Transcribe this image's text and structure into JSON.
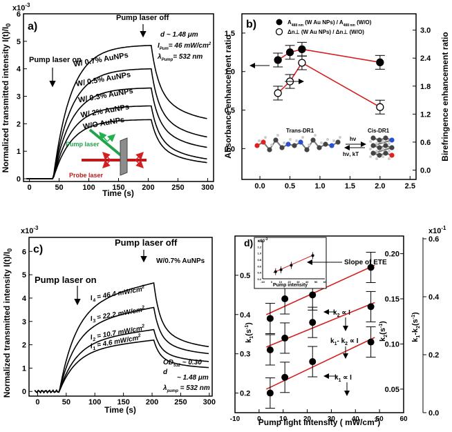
{
  "chart_data": [
    {
      "type": "line",
      "panel_label": "a)",
      "xlabel": "Time (s)",
      "ylabel": "Normalized transmitted intensity  I(t)/I",
      "ylabel_sub": "0",
      "exponent": "x10",
      "exponent_sup": "-3",
      "xlim": [
        -10,
        310
      ],
      "ylim": [
        -0.1,
        6.0
      ],
      "xticks": [
        "0",
        "50",
        "100",
        "150",
        "200",
        "250",
        "300"
      ],
      "yticks": [
        "0",
        "1",
        "2",
        "3",
        "4",
        "5",
        "6"
      ],
      "annotations": {
        "pump_on": "Pump laser on",
        "pump_off": "Pump laser off",
        "d": "d ~ 1.48 μm",
        "I": "I",
        "I_sub": "Pum",
        "I_val": "= 46 mW/cm",
        "I_sup": "2",
        "lambda": "λ",
        "lambda_sub": "Pump",
        "lambda_val": "= 532 nm",
        "pump_laser": "Pump laser",
        "probe_laser": "Probe laser"
      },
      "series": [
        {
          "name": "W/ 0.7% AuNPs",
          "peak": 4.85,
          "final": 1.95
        },
        {
          "name": "W/ 0.5% AuNPs",
          "peak": 4.0,
          "final": 1.3
        },
        {
          "name": "W/ 0.3% AuNPs",
          "peak": 3.3,
          "final": 0.95
        },
        {
          "name": "W/ 2% AuNPs",
          "peak": 2.65,
          "final": 0.55
        },
        {
          "name": "W/O AuNPs",
          "peak": 2.15,
          "final": 0.45
        }
      ]
    },
    {
      "type": "scatter",
      "panel_label": "b)",
      "ylabel_left": "Absorbance enhancement ratio",
      "ylabel_right": "Birefringence enhancement ratio",
      "xlim": [
        -0.3,
        2.6
      ],
      "ylim_left": [
        -0.4,
        1.75
      ],
      "ylim_right": [
        -0.2,
        3.35
      ],
      "xticks": [
        "0.0",
        "0.5",
        "1.0",
        "1.5",
        "2.0",
        "2.5"
      ],
      "yticks_left": [
        "0.0",
        "0.5",
        "1.0",
        "1.5"
      ],
      "yticks_right": [
        "0.0",
        "0.6",
        "1.2",
        "1.8",
        "2.4",
        "3.0"
      ],
      "legend": {
        "absorbance_main": "A",
        "absorbance_sub": "488 nm",
        "absorbance_mid": " (W Au NPs) / A",
        "absorbance_sub2": "488 nm",
        "absorbance_tail": " (W/O)",
        "birefringence": "Δn⊥ (W Au NPs)  / Δn⊥ (W/O)"
      },
      "molecule": {
        "trans": "Trans-DR1",
        "cis": "Cis-DR1",
        "hv": "hν",
        "reverse": "hν, kT"
      },
      "series": [
        {
          "name": "Absorbance",
          "axis": "left",
          "x": [
            0.3,
            0.5,
            0.7,
            2.0
          ],
          "y": [
            1.15,
            1.25,
            1.29,
            1.12
          ]
        },
        {
          "name": "Birefringence",
          "axis": "right",
          "x": [
            0.3,
            0.5,
            0.7,
            2.0
          ],
          "y": [
            1.65,
            1.9,
            2.3,
            1.35
          ]
        }
      ]
    },
    {
      "type": "line",
      "panel_label": "c)",
      "xlabel": "Time (s)",
      "ylabel": "Normalized transmitted intensity  I(t)/I",
      "ylabel_sub": "0",
      "exponent": "x10",
      "exponent_sup": "-3",
      "xlim": [
        -15,
        305
      ],
      "ylim": [
        -0.2,
        6.6
      ],
      "xticks": [
        "0",
        "50",
        "100",
        "150",
        "200",
        "250",
        "300"
      ],
      "yticks": [
        "0",
        "1",
        "2",
        "3",
        "4",
        "5",
        "6"
      ],
      "annotations": {
        "pump_on": "Pump laser on",
        "pump_off": "Pump laser off",
        "sample": "W/0.7% AuNPs",
        "od": "OD",
        "od_sub": "532",
        "od_val": " ~ 0.30",
        "d": "d",
        "d_val": "~ 1.48 μm",
        "lambda": "λ",
        "lambda_sub": "pump",
        "lambda_val": " = 532 nm"
      },
      "series": [
        {
          "name": "I",
          "sub": "4",
          "val": " = 46.4 mW/cm",
          "sup": "2",
          "peak": 4.65,
          "final": 1.75
        },
        {
          "name": "I",
          "sub": "3",
          "val": " = 22.2 mW/cm",
          "sup": "2",
          "peak": 3.6,
          "final": 1.5
        },
        {
          "name": "I",
          "sub": "2",
          "val": " = 10.7 mW/cm",
          "sup": "2",
          "peak": 2.65,
          "final": 1.2
        },
        {
          "name": "I",
          "sub": "1",
          "val": " = 4.6 mW/cm",
          "sup": "2",
          "peak": 2.2,
          "final": 0.95
        }
      ]
    },
    {
      "type": "scatter",
      "panel_label": "d)",
      "xlabel": "Pump light intensity ( mW/cm",
      "xlabel_sup": "2",
      "xlabel_tail": ")",
      "ylabel_k1": "k",
      "ylabel_k1_sub": "1",
      "ylabel_k1_tail": "(s",
      "ylabel_k1_sup": "-1",
      "ylabel_k1_close": ")",
      "ylabel_k2": "k",
      "ylabel_k2_sub": "2",
      "ylabel_k2_tail": "(s",
      "ylabel_k2_sup": "-1",
      "ylabel_k2_close": ")",
      "ylabel_diff": "k",
      "ylabel_diff_sub1": "1",
      "ylabel_diff_mid": "-k",
      "ylabel_diff_sub2": "2",
      "ylabel_diff_tail": "(s",
      "ylabel_diff_sup": "-1",
      "ylabel_diff_close": ")",
      "exponent": "x10",
      "exponent_sup": "-1",
      "xlim": [
        -10,
        60
      ],
      "ylim_k1": [
        0.15,
        0.6
      ],
      "xticks": [
        "-10",
        "0",
        "10",
        "20",
        "30",
        "40",
        "50",
        "60"
      ],
      "yticks_k1": [
        "0.2",
        "0.3",
        "0.4",
        "0.5"
      ],
      "yticks_k2": [
        "0.05",
        "0.10",
        "0.15",
        "0.20"
      ],
      "yticks_diff": [
        "0.0",
        "0.2",
        "0.4",
        "0.6"
      ],
      "labels": {
        "k1": "k",
        "k1_sub": "1",
        "k1_tail": " ∝ I",
        "k2": "k",
        "k2_sub": "2",
        "k2_tail": " ∝ I",
        "diff": "k",
        "diff_sub1": "1",
        "diff_mid": "- k",
        "diff_sub2": "2",
        "diff_tail": " ∝ I",
        "slope": "Slope of ETE"
      },
      "series": [
        {
          "name": "k1",
          "x": [
            4.6,
            10.7,
            22.2,
            46.4
          ],
          "y": [
            0.39,
            0.44,
            0.45,
            0.52
          ]
        },
        {
          "name": "k1-k2",
          "x": [
            4.6,
            10.7,
            22.2,
            46.4
          ],
          "y": [
            0.31,
            0.34,
            0.38,
            0.42
          ]
        },
        {
          "name": "k2",
          "x": [
            4.6,
            10.7,
            22.2,
            46.4
          ],
          "y": [
            0.2,
            0.24,
            0.28,
            0.33
          ]
        }
      ],
      "inset": {
        "xlabel": "Pump intensity",
        "exponent": "x10",
        "exponent_sup": "-3",
        "xticks": [
          "-10",
          "0",
          "10",
          "20",
          "30",
          "40",
          "50",
          "60"
        ],
        "yticks": [
          "0.2",
          "0.4",
          "0.6",
          "0.8",
          "1.0",
          "1.2",
          "1.4"
        ],
        "x": [
          4.6,
          10.7,
          22.2,
          46.4
        ],
        "y": [
          0.42,
          0.48,
          0.62,
          0.92
        ]
      }
    }
  ]
}
